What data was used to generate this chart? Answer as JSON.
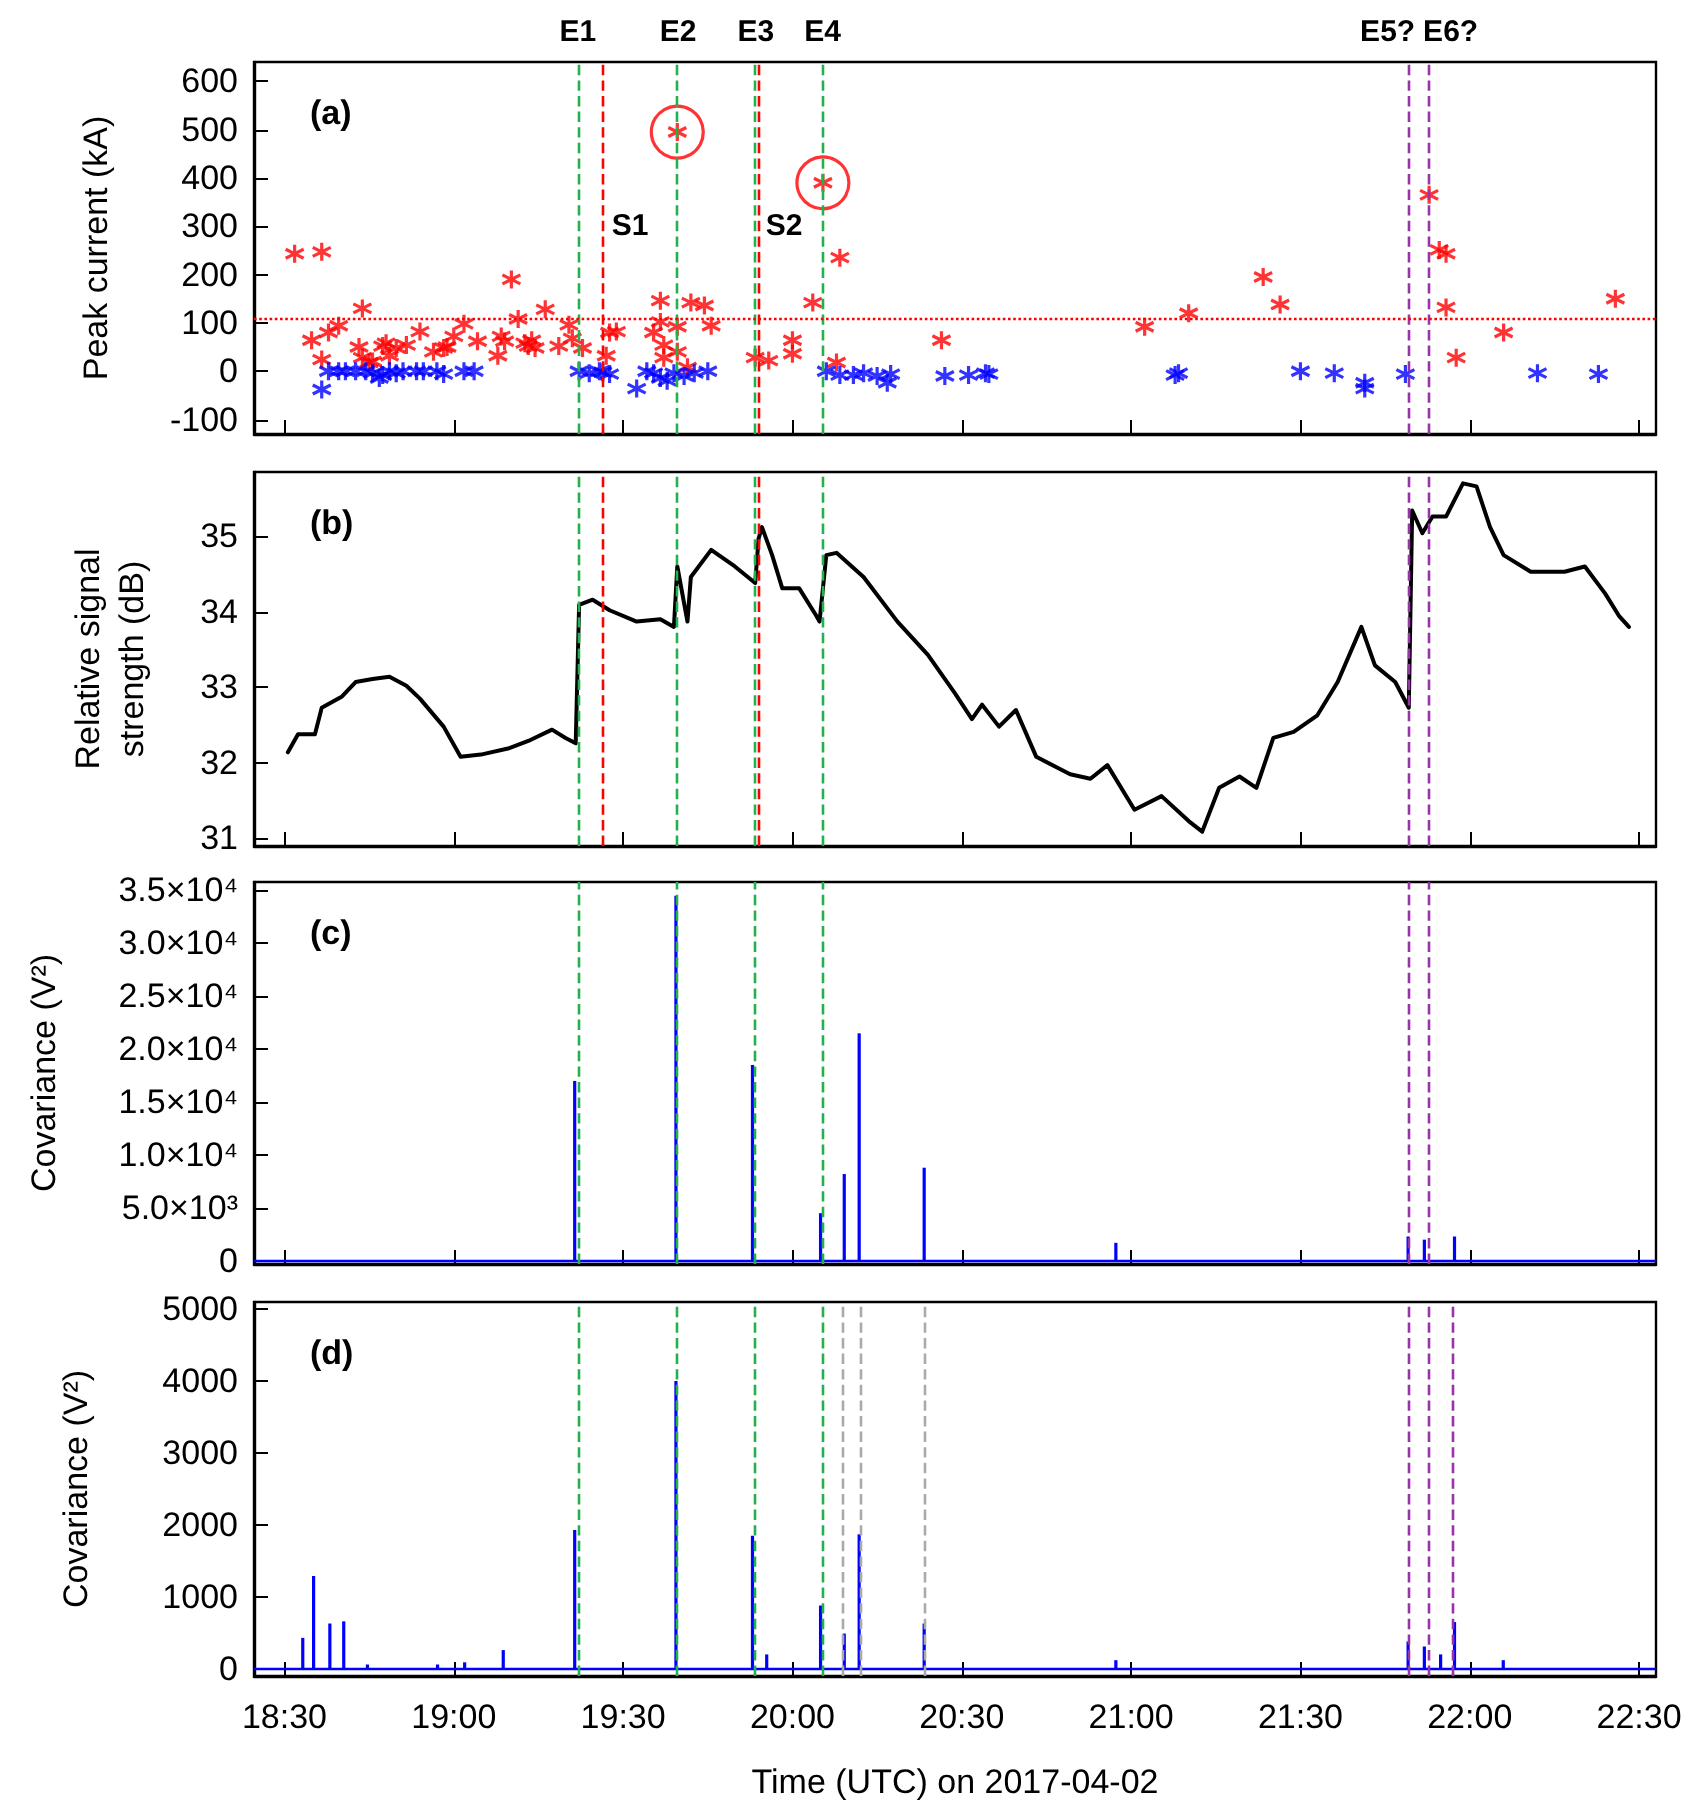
{
  "chart_data": [
    {
      "type": "scatter",
      "title": "(a)",
      "ylabel": "Peak current (kA)",
      "xlim": [
        18.41,
        22.55
      ],
      "ylim": [
        -130,
        640
      ],
      "tick_labels": "y",
      "yticks": [
        -100,
        0,
        100,
        200,
        300,
        400,
        500,
        600
      ],
      "series": [
        {
          "color": "#ff0000",
          "marker": "cross",
          "x": [
            18.53,
            18.58,
            18.61,
            18.61,
            18.63,
            18.66,
            18.72,
            18.73,
            18.73,
            18.75,
            18.76,
            18.79,
            18.8,
            18.81,
            18.83,
            18.86,
            18.9,
            18.94,
            18.97,
            18.98,
            19.0,
            19.03,
            19.07,
            19.13,
            19.14,
            19.15,
            19.17,
            19.19,
            19.21,
            19.22,
            19.23,
            19.24,
            19.27,
            19.31,
            19.34,
            19.35,
            19.38,
            19.45,
            19.46,
            19.48,
            19.59,
            19.61,
            19.61,
            19.62,
            19.62,
            19.66,
            19.66,
            19.66,
            19.69,
            19.7,
            19.74,
            19.76,
            19.89,
            19.93,
            20.0,
            20.0,
            20.06,
            20.09,
            20.13,
            20.14,
            20.44,
            21.04,
            21.17,
            21.39,
            21.44,
            21.88,
            21.91,
            21.93,
            21.93,
            21.96,
            22.1,
            22.43
          ],
          "values": [
            243,
            64,
            247,
            24,
            80,
            94,
            50,
            130,
            28,
            18,
            20,
            52,
            58,
            32,
            48,
            54,
            82,
            40,
            48,
            50,
            72,
            98,
            62,
            32,
            72,
            62,
            190,
            108,
            58,
            52,
            64,
            48,
            128,
            52,
            96,
            68,
            48,
            32,
            80,
            82,
            80,
            102,
            146,
            54,
            28,
            40,
            495,
            92,
            8,
            142,
            136,
            94,
            28,
            22,
            64,
            36,
            142,
            390,
            18,
            235,
            64,
            92,
            120,
            195,
            138,
            365,
            251,
            243,
            132,
            28,
            80,
            150
          ]
        },
        {
          "color": "#0000ff",
          "marker": "cross",
          "x": [
            18.61,
            18.63,
            18.66,
            18.68,
            18.71,
            18.74,
            18.76,
            18.78,
            18.79,
            18.81,
            18.83,
            18.85,
            18.89,
            18.91,
            18.95,
            18.97,
            19.03,
            19.06,
            19.37,
            19.4,
            19.43,
            19.44,
            19.46,
            19.54,
            19.57,
            19.59,
            19.61,
            19.63,
            19.65,
            19.68,
            19.71,
            19.75,
            20.1,
            20.14,
            20.18,
            20.21,
            20.25,
            20.28,
            20.29,
            20.45,
            20.52,
            20.57,
            20.58,
            21.13,
            21.14,
            21.5,
            21.6,
            21.69,
            21.69,
            21.81,
            22.2,
            22.38
          ],
          "values": [
            -38,
            0,
            0,
            0,
            0,
            0,
            -4,
            -14,
            -8,
            0,
            -4,
            0,
            0,
            0,
            0,
            -6,
            0,
            0,
            0,
            -4,
            0,
            -2,
            -6,
            -36,
            0,
            -4,
            -14,
            -20,
            -4,
            -10,
            -4,
            0,
            0,
            -8,
            -8,
            -4,
            -10,
            -24,
            -6,
            -10,
            -8,
            -4,
            -6,
            -8,
            -4,
            0,
            -4,
            -24,
            -36,
            -6,
            -4,
            -6
          ]
        },
        {
          "color": "#ff0000",
          "x": [
            19.66,
            20.09
          ],
          "values": [
            495,
            390
          ]
        }
      ],
      "xticks": [
        {
          "value": 18.5,
          "label": null
        },
        {
          "value": 19,
          "label": null
        },
        {
          "value": 19.5,
          "label": null
        },
        {
          "value": 20,
          "label": null
        },
        {
          "value": 20.5,
          "label": null
        },
        {
          "value": 21,
          "label": null
        },
        {
          "value": 21.5,
          "label": null
        },
        {
          "value": 22,
          "label": null
        },
        {
          "value": 22.5,
          "label": null
        }
      ],
      "ref_lines": [
        {
          "axis": "x",
          "value": 19.366,
          "label": "E1",
          "color": "#22b14c",
          "line_style": "dashed"
        },
        {
          "axis": "x",
          "value": 19.436,
          "color": "#ff0000",
          "line_style": "dashed"
        },
        {
          "axis": "x",
          "value": 19.662,
          "label": "E2",
          "color": "#22b14c",
          "line_style": "dashed"
        },
        {
          "axis": "x",
          "value": 19.892,
          "label": "E3",
          "color": "#22b14c",
          "line_style": "dashed"
        },
        {
          "axis": "x",
          "value": 19.904,
          "color": "#ff0000",
          "line_style": "dashed"
        },
        {
          "axis": "x",
          "value": 20.089,
          "label": "E4",
          "color": "#22b14c",
          "line_style": "dashed"
        },
        {
          "axis": "x",
          "value": 21.825,
          "label": "E5?",
          "color": "#9933aa",
          "line_style": "dashed"
        },
        {
          "axis": "x",
          "value": 21.876,
          "label": "E6?",
          "color": "#9933aa",
          "line_style": "dashed"
        },
        {
          "axis": "y",
          "value": 110,
          "color": "#ff0000",
          "line_style": "dotted"
        }
      ],
      "annotations": [
        "S1",
        "S2"
      ]
    },
    {
      "type": "line",
      "title": "(b)",
      "ylabel": "Relative signal strength (dB)",
      "xlim": [
        18.41,
        22.55
      ],
      "ylim": [
        30.9,
        35.85
      ],
      "tick_labels": "y",
      "marker": "none",
      "line_style": "solid",
      "xticks": [
        {
          "value": 18.5,
          "label": null
        },
        {
          "value": 19,
          "label": null
        },
        {
          "value": 19.5,
          "label": null
        },
        {
          "value": 20,
          "label": null
        },
        {
          "value": 20.5,
          "label": null
        },
        {
          "value": 21,
          "label": null
        },
        {
          "value": 21.5,
          "label": null
        },
        {
          "value": 22,
          "label": null
        },
        {
          "value": 22.5,
          "label": null
        }
      ],
      "yticks": [
        31,
        32,
        33,
        34,
        35
      ],
      "series": [
        {
          "color": "#000000",
          "x": [
            18.51,
            18.54,
            18.59,
            18.61,
            18.67,
            18.71,
            18.76,
            18.81,
            18.86,
            18.9,
            18.97,
            19.02,
            19.08,
            19.16,
            19.22,
            19.29,
            19.33,
            19.36,
            19.37,
            19.41,
            19.46,
            19.54,
            19.61,
            19.65,
            19.66,
            19.69,
            19.7,
            19.76,
            19.83,
            19.89,
            19.9,
            19.91,
            19.94,
            19.97,
            20.02,
            20.07,
            20.08,
            20.1,
            20.13,
            20.21,
            20.31,
            20.4,
            20.48,
            20.53,
            20.56,
            20.61,
            20.66,
            20.72,
            20.82,
            20.88,
            20.93,
            21.01,
            21.09,
            21.17,
            21.21,
            21.26,
            21.32,
            21.37,
            21.42,
            21.48,
            21.55,
            21.61,
            21.68,
            21.72,
            21.78,
            21.82,
            21.83,
            21.86,
            21.89,
            21.93,
            21.98,
            22.02,
            22.06,
            22.1,
            22.18,
            22.28,
            22.34,
            22.4,
            22.44,
            22.47
          ],
          "values": [
            32.14,
            32.38,
            32.38,
            32.73,
            32.88,
            33.07,
            33.11,
            33.14,
            33.02,
            32.85,
            32.48,
            32.08,
            32.11,
            32.19,
            32.29,
            32.44,
            32.33,
            32.26,
            34.09,
            34.16,
            34.02,
            33.87,
            33.9,
            33.8,
            34.6,
            33.87,
            34.46,
            34.82,
            34.6,
            34.38,
            34.97,
            35.12,
            34.75,
            34.31,
            34.31,
            33.95,
            33.87,
            34.75,
            34.78,
            34.46,
            33.87,
            33.43,
            32.92,
            32.58,
            32.77,
            32.48,
            32.7,
            32.08,
            31.85,
            31.79,
            31.97,
            31.38,
            31.56,
            31.23,
            31.09,
            31.67,
            31.82,
            31.67,
            32.33,
            32.41,
            32.63,
            33.07,
            33.8,
            33.29,
            33.07,
            32.73,
            35.34,
            35.04,
            35.26,
            35.26,
            35.7,
            35.66,
            35.12,
            34.75,
            34.53,
            34.53,
            34.6,
            34.24,
            33.95,
            33.8
          ]
        }
      ],
      "ref_lines": [
        {
          "axis": "x",
          "value": 19.366,
          "color": "#22b14c",
          "line_style": "dashed"
        },
        {
          "axis": "x",
          "value": 19.436,
          "color": "#ff0000",
          "line_style": "dashed"
        },
        {
          "axis": "x",
          "value": 19.662,
          "color": "#22b14c",
          "line_style": "dashed"
        },
        {
          "axis": "x",
          "value": 19.892,
          "color": "#22b14c",
          "line_style": "dashed"
        },
        {
          "axis": "x",
          "value": 19.904,
          "color": "#ff0000",
          "line_style": "dashed"
        },
        {
          "axis": "x",
          "value": 20.089,
          "color": "#22b14c",
          "line_style": "dashed"
        },
        {
          "axis": "x",
          "value": 21.825,
          "color": "#9933aa",
          "line_style": "dashed"
        },
        {
          "axis": "x",
          "value": 21.876,
          "color": "#9933aa",
          "line_style": "dashed"
        }
      ]
    },
    {
      "type": "bar",
      "title": "(c)",
      "ylabel": "Covariance (V²)",
      "xlim": [
        18.41,
        22.55
      ],
      "ylim": [
        -300,
        35800
      ],
      "tick_labels": "y",
      "xticks": [
        {
          "value": 18.5,
          "label": null
        },
        {
          "value": 19,
          "label": null
        },
        {
          "value": 19.5,
          "label": null
        },
        {
          "value": 20,
          "label": null
        },
        {
          "value": 20.5,
          "label": null
        },
        {
          "value": 21,
          "label": null
        },
        {
          "value": 21.5,
          "label": null
        },
        {
          "value": 22,
          "label": null
        },
        {
          "value": 22.5,
          "label": null
        }
      ],
      "yticks": [
        0,
        {
          "value": 5000,
          "label": "5.0×10³"
        },
        {
          "value": 10000,
          "label": "1.0×10⁴"
        },
        {
          "value": 15000,
          "label": "1.5×10⁴"
        },
        {
          "value": 20000,
          "label": "2.0×10⁴"
        },
        {
          "value": 25000,
          "label": "2.5×10⁴"
        },
        {
          "value": 30000,
          "label": "3.0×10⁴"
        },
        {
          "value": 35000,
          "label": "3.5×10⁴"
        }
      ],
      "series": [
        {
          "color": "#0000ff",
          "x": [
            19.357,
            19.656,
            19.882,
            20.083,
            20.153,
            20.197,
            20.389,
            20.955,
            21.818,
            21.866,
            21.955
          ],
          "values": [
            17000,
            34500,
            18500,
            4500,
            8200,
            21500,
            8800,
            1700,
            2300,
            2000,
            2300
          ]
        }
      ],
      "ref_lines": [
        {
          "axis": "y",
          "value": 0,
          "color": "#0000ff",
          "line_style": "solid"
        },
        {
          "axis": "x",
          "value": 19.366,
          "color": "#22b14c",
          "line_style": "dashed"
        },
        {
          "axis": "x",
          "value": 19.662,
          "color": "#22b14c",
          "line_style": "dashed"
        },
        {
          "axis": "x",
          "value": 19.892,
          "color": "#22b14c",
          "line_style": "dashed"
        },
        {
          "axis": "x",
          "value": 20.089,
          "color": "#22b14c",
          "line_style": "dashed"
        },
        {
          "axis": "x",
          "value": 21.825,
          "color": "#9933aa",
          "line_style": "dashed"
        },
        {
          "axis": "x",
          "value": 21.876,
          "color": "#9933aa",
          "line_style": "dashed"
        }
      ]
    },
    {
      "type": "bar",
      "title": "(d)",
      "ylabel": "Covariance (V²)",
      "xlabel": "Time (UTC) on 2017-04-02",
      "xlim": [
        18.41,
        22.55
      ],
      "ylim": [
        -100,
        5100
      ],
      "xticks": [
        {
          "value": 18.5,
          "label": "18:30"
        },
        {
          "value": 19,
          "label": "19:00"
        },
        {
          "value": 19.5,
          "label": "19:30"
        },
        {
          "value": 20,
          "label": "20:00"
        },
        {
          "value": 20.5,
          "label": "20:30"
        },
        {
          "value": 21,
          "label": "21:00"
        },
        {
          "value": 21.5,
          "label": "21:30"
        },
        {
          "value": 22,
          "label": "22:00"
        },
        {
          "value": 22.5,
          "label": "22:30"
        }
      ],
      "yticks": [
        0,
        1000,
        2000,
        3000,
        4000,
        5000
      ],
      "series": [
        {
          "color": "#0000ff",
          "x": [
            18.554,
            18.586,
            18.634,
            18.675,
            18.745,
            18.952,
            19.032,
            19.146,
            19.357,
            19.656,
            19.882,
            19.924,
            20.083,
            20.153,
            20.197,
            20.389,
            20.955,
            21.818,
            21.866,
            21.914,
            21.955,
            22.099
          ],
          "values": [
            430,
            1290,
            630,
            660,
            60,
            60,
            90,
            260,
            1930,
            4000,
            1850,
            200,
            880,
            490,
            1870,
            630,
            120,
            380,
            310,
            200,
            650,
            120
          ]
        }
      ],
      "ref_lines": [
        {
          "axis": "y",
          "value": 0,
          "color": "#0000ff",
          "line_style": "solid"
        },
        {
          "axis": "x",
          "value": 19.366,
          "color": "#22b14c",
          "line_style": "dashed"
        },
        {
          "axis": "x",
          "value": 19.662,
          "color": "#22b14c",
          "line_style": "dashed"
        },
        {
          "axis": "x",
          "value": 19.892,
          "color": "#22b14c",
          "line_style": "dashed"
        },
        {
          "axis": "x",
          "value": 20.089,
          "color": "#22b14c",
          "line_style": "dashed"
        },
        {
          "axis": "x",
          "value": 20.153,
          "color": "#aaaaaa",
          "line_style": "dashed"
        },
        {
          "axis": "x",
          "value": 20.197,
          "color": "#aaaaaa",
          "line_style": "dashed"
        },
        {
          "axis": "x",
          "value": 20.389,
          "color": "#aaaaaa",
          "line_style": "dashed"
        },
        {
          "axis": "x",
          "value": 21.825,
          "color": "#9933aa",
          "line_style": "dashed"
        },
        {
          "axis": "x",
          "value": 21.876,
          "color": "#9933aa",
          "line_style": "dashed"
        },
        {
          "axis": "x",
          "value": 21.955,
          "color": "#9933aa",
          "line_style": "dashed"
        }
      ]
    }
  ]
}
